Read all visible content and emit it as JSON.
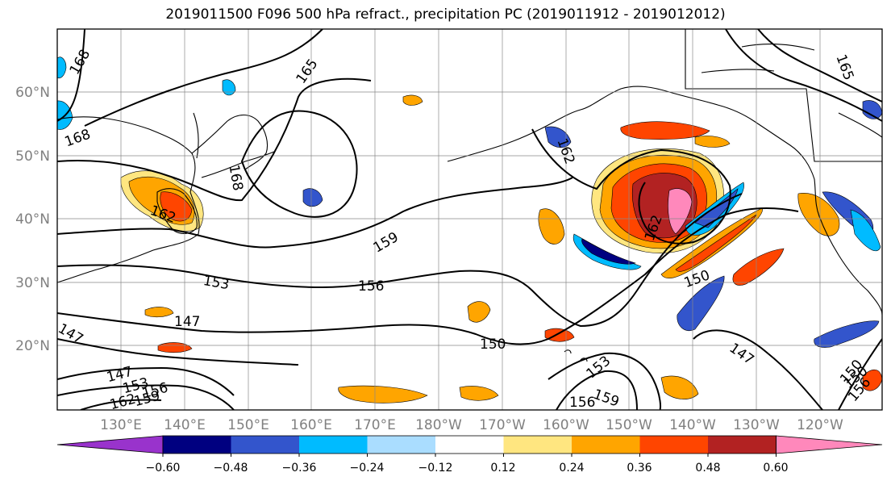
{
  "title": "2019011500 F096 500 hPa refract., precipitation PC (2019011912 - 2019012012)",
  "map": {
    "region": "North Pacific",
    "lat_labels": [
      "60°N",
      "50°N",
      "40°N",
      "30°N",
      "20°N"
    ],
    "lon_labels": [
      "130°E",
      "140°E",
      "150°E",
      "160°E",
      "170°E",
      "180°W",
      "170°W",
      "160°W",
      "150°W",
      "140°W",
      "130°W",
      "120°W"
    ],
    "contour_labels": [
      "168",
      "165",
      "168",
      "162",
      "168",
      "159",
      "153",
      "156",
      "147",
      "147",
      "150",
      "162",
      "150",
      "147",
      "150",
      "153",
      "156",
      "159",
      "147",
      "153",
      "156",
      "159",
      "162",
      "150",
      "156",
      "162",
      "165"
    ]
  },
  "colorbar": {
    "colors": [
      "#9933cc",
      "#000080",
      "#3355cc",
      "#00bbff",
      "#aaddff",
      "#ffffff",
      "#ffe680",
      "#ffa500",
      "#ff4500",
      "#b22222",
      "#ff88bb"
    ],
    "tick_labels": [
      "−0.60",
      "−0.48",
      "−0.36",
      "−0.24",
      "−0.12",
      "0.12",
      "0.24",
      "0.36",
      "0.48",
      "0.60"
    ]
  }
}
